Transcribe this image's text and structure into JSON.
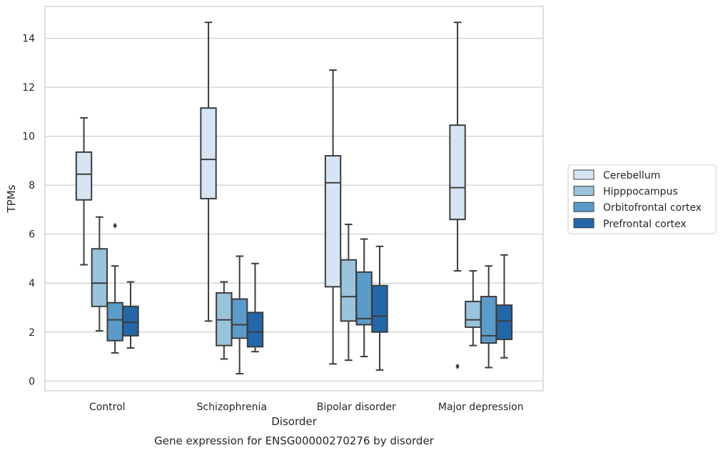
{
  "chart_data": {
    "type": "box",
    "title": "",
    "caption": "Gene expression for ENSG00000270276 by disorder",
    "xlabel": "Disorder",
    "ylabel": "TPMs",
    "ylim": [
      -0.4,
      15.3
    ],
    "yticks": [
      0,
      2,
      4,
      6,
      8,
      10,
      12,
      14
    ],
    "grid": "horizontal",
    "legend_position": "right",
    "categories": [
      "Control",
      "Schizophrenia",
      "Bipolar disorder",
      "Major depression"
    ],
    "series": [
      {
        "name": "Cerebellum",
        "color": "#d6e5f3",
        "boxes": [
          {
            "whisker_low": 4.75,
            "q1": 7.4,
            "median": 8.45,
            "q3": 9.35,
            "whisker_high": 10.75,
            "outliers": []
          },
          {
            "whisker_low": 2.45,
            "q1": 7.45,
            "median": 9.05,
            "q3": 11.15,
            "whisker_high": 14.65,
            "outliers": []
          },
          {
            "whisker_low": 0.7,
            "q1": 3.85,
            "median": 8.1,
            "q3": 9.2,
            "whisker_high": 12.7,
            "outliers": []
          },
          {
            "whisker_low": 4.5,
            "q1": 6.6,
            "median": 7.9,
            "q3": 10.45,
            "whisker_high": 14.65,
            "outliers": [
              0.6
            ]
          }
        ]
      },
      {
        "name": "Hipppocampus",
        "color": "#9ac3dd",
        "boxes": [
          {
            "whisker_low": 2.05,
            "q1": 3.05,
            "median": 4.0,
            "q3": 5.4,
            "whisker_high": 6.7,
            "outliers": []
          },
          {
            "whisker_low": 0.9,
            "q1": 1.45,
            "median": 2.5,
            "q3": 3.6,
            "whisker_high": 4.05,
            "outliers": []
          },
          {
            "whisker_low": 0.85,
            "q1": 2.45,
            "median": 3.45,
            "q3": 4.95,
            "whisker_high": 6.4,
            "outliers": []
          },
          {
            "whisker_low": 1.45,
            "q1": 2.2,
            "median": 2.5,
            "q3": 3.25,
            "whisker_high": 4.5,
            "outliers": []
          }
        ]
      },
      {
        "name": "Orbitofrontal cortex",
        "color": "#5a9bc9",
        "boxes": [
          {
            "whisker_low": 1.15,
            "q1": 1.65,
            "median": 2.5,
            "q3": 3.2,
            "whisker_high": 4.7,
            "outliers": [
              6.35
            ]
          },
          {
            "whisker_low": 0.3,
            "q1": 1.75,
            "median": 2.3,
            "q3": 3.35,
            "whisker_high": 5.1,
            "outliers": []
          },
          {
            "whisker_low": 1.0,
            "q1": 2.3,
            "median": 2.55,
            "q3": 4.45,
            "whisker_high": 5.8,
            "outliers": []
          },
          {
            "whisker_low": 0.55,
            "q1": 1.55,
            "median": 1.85,
            "q3": 3.45,
            "whisker_high": 4.7,
            "outliers": []
          }
        ]
      },
      {
        "name": "Prefrontal cortex",
        "color": "#2467a9",
        "boxes": [
          {
            "whisker_low": 1.35,
            "q1": 1.85,
            "median": 2.4,
            "q3": 3.05,
            "whisker_high": 4.05,
            "outliers": []
          },
          {
            "whisker_low": 1.2,
            "q1": 1.4,
            "median": 2.0,
            "q3": 2.8,
            "whisker_high": 4.8,
            "outliers": []
          },
          {
            "whisker_low": 0.45,
            "q1": 2.0,
            "median": 2.65,
            "q3": 3.9,
            "whisker_high": 5.5,
            "outliers": []
          },
          {
            "whisker_low": 0.95,
            "q1": 1.7,
            "median": 2.45,
            "q3": 3.1,
            "whisker_high": 5.15,
            "outliers": []
          }
        ]
      }
    ]
  }
}
